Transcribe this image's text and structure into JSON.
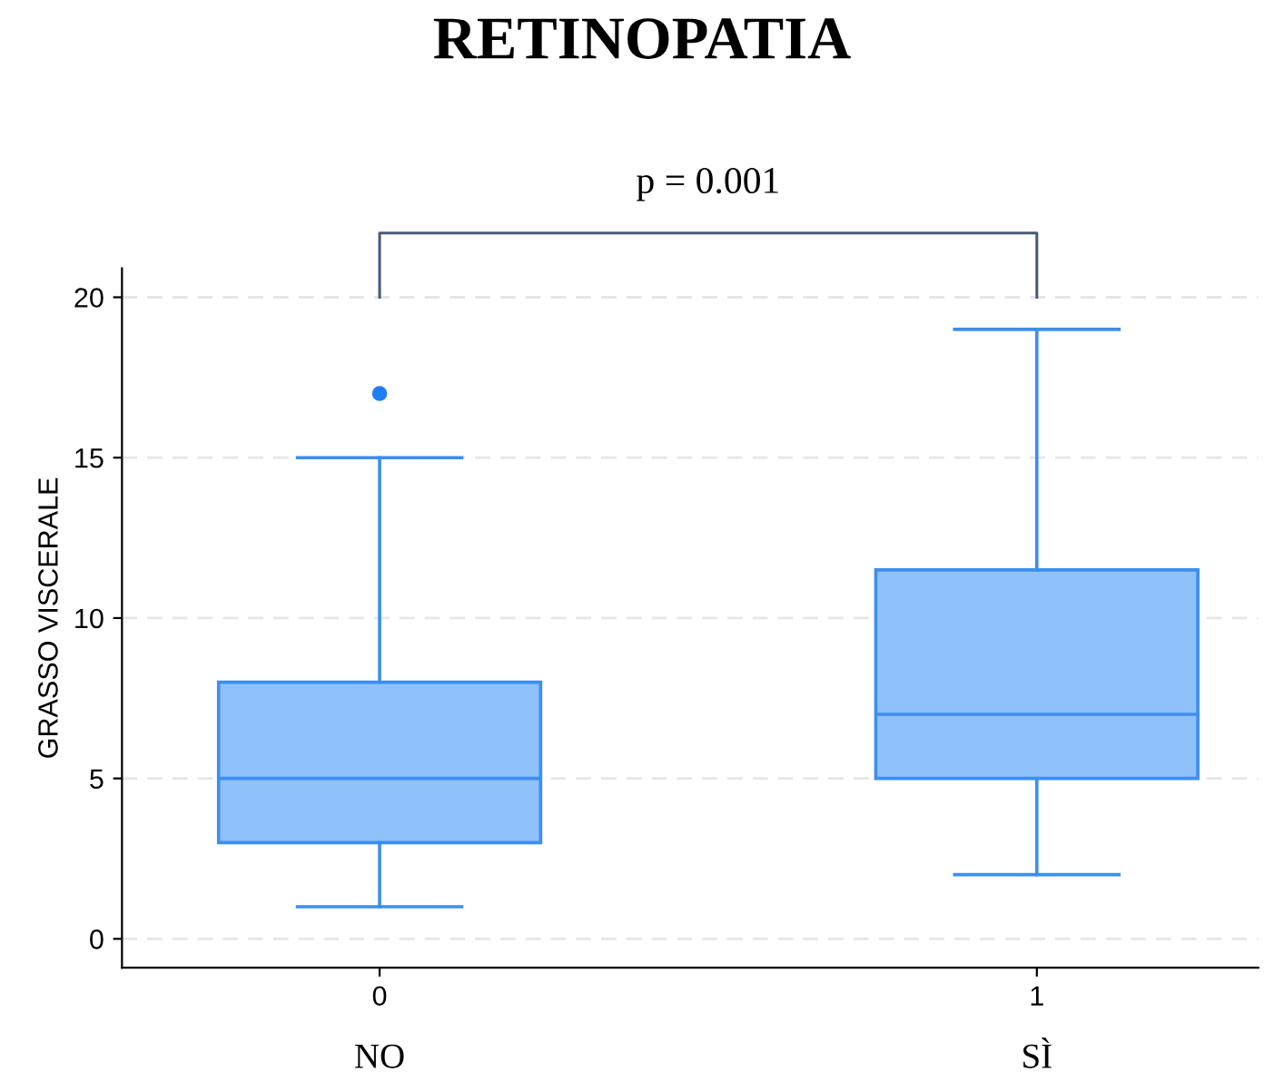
{
  "chart_data": {
    "type": "box",
    "title": "RETINOPATIA",
    "ylabel": "GRASSO VISCERALE",
    "categories": [
      "0",
      "1"
    ],
    "series": [
      {
        "color": "#8fc1fb",
        "boxes": [
          {
            "low": 1,
            "q1": 3,
            "median": 5,
            "q3": 8,
            "high": 15,
            "outliers": [
              17
            ]
          },
          {
            "low": 2,
            "q1": 5,
            "median": 7,
            "q3": 11.5,
            "high": 19
          }
        ]
      }
    ],
    "ylim": [
      -0.9,
      20.9
    ],
    "yticks": [
      0,
      5,
      10,
      15,
      20
    ],
    "grid": "y",
    "annotations": [
      "p = 0.001",
      "NO",
      "SÌ"
    ]
  }
}
